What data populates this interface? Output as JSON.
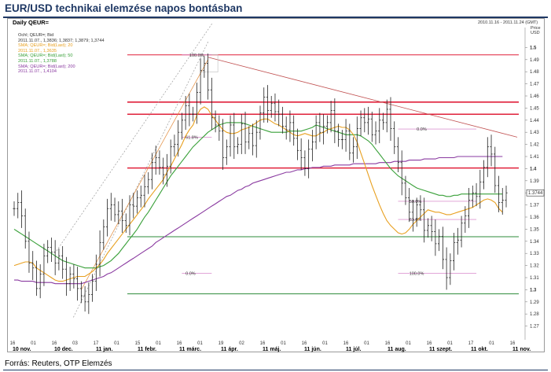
{
  "header": {
    "title": "EUR/USD technikai elemzése napos bontásban",
    "source": "Forrás: Reuters, OTP Elemzés"
  },
  "chart_header": {
    "period": "Daily QEUR=",
    "date_range": "2010.11.16 - 2011.11.24 (GMT)",
    "price_label": "Price",
    "currency_label": "USD"
  },
  "legend": [
    {
      "line1": "Ochl; QEUR=; Bid",
      "line2": "2011.11.07., 1,3836; 1,3837; 1,3879; 1,3744",
      "color": "#333333"
    },
    {
      "line1": "SMA; QEUR=; Bid(Last); 20",
      "line2": "2011.11.07., 1,3635",
      "color": "#e8a020"
    },
    {
      "line1": "SMA; QEUR=; Bid(Last); 50",
      "line2": "2011.11.07., 1,3788",
      "color": "#39a039"
    },
    {
      "line1": "SMA; QEUR=; Bid(Last); 200",
      "line2": "2011.11.07., 1,4104",
      "color": "#8a3aa0"
    }
  ],
  "chart_data": {
    "type": "candlestick",
    "title": "EUR/USD technikai elemzése napos bontásban",
    "instrument": "Daily QEUR=",
    "ylim": [
      1.26,
      1.51
    ],
    "y_ticks": [
      1.27,
      1.28,
      1.29,
      1.3,
      1.31,
      1.32,
      1.33,
      1.34,
      1.35,
      1.36,
      1.37,
      1.38,
      1.39,
      1.4,
      1.41,
      1.42,
      1.43,
      1.44,
      1.45,
      1.46,
      1.47,
      1.48,
      1.49,
      1.5
    ],
    "y_tick_labels": [
      "1.27",
      "1.28",
      "1.29",
      "1.3",
      "1.31",
      "1.32",
      "1.33",
      "1.34",
      "1.35",
      "1.36",
      "1.37",
      "1.38",
      "1.39",
      "1.4",
      "1.41",
      "1.42",
      "1.43",
      "1.44",
      "1.45",
      "1.46",
      "1.47",
      "1.48",
      "1.49",
      "1.5"
    ],
    "y_bold_ticks": [
      1.3,
      1.4,
      1.5
    ],
    "current_price_label": "1.3744",
    "x_day_labels": [
      "16",
      "01",
      "16",
      "03",
      "17",
      "01",
      "15",
      "01",
      "16",
      "01",
      "19",
      "02",
      "16",
      "01",
      "16",
      "01",
      "16",
      "01",
      "16",
      "01",
      "16",
      "01",
      "17",
      "01",
      "16"
    ],
    "x_month_labels": [
      "10 nov.",
      "10 dec.",
      "11 jan.",
      "11 febr.",
      "11 márc.",
      "11 ápr.",
      "11 máj.",
      "11 jún.",
      "11 júl.",
      "11 aug.",
      "11 szept.",
      "11 okt.",
      "11 nov."
    ],
    "closes": [
      1.367,
      1.372,
      1.361,
      1.34,
      1.322,
      1.318,
      1.301,
      1.313,
      1.328,
      1.335,
      1.331,
      1.322,
      1.328,
      1.317,
      1.305,
      1.313,
      1.309,
      1.301,
      1.295,
      1.29,
      1.296,
      1.307,
      1.321,
      1.339,
      1.352,
      1.367,
      1.37,
      1.362,
      1.365,
      1.357,
      1.353,
      1.37,
      1.369,
      1.376,
      1.378,
      1.385,
      1.391,
      1.405,
      1.409,
      1.401,
      1.395,
      1.402,
      1.418,
      1.42,
      1.43,
      1.44,
      1.452,
      1.445,
      1.445,
      1.463,
      1.481,
      1.487,
      1.465,
      1.442,
      1.436,
      1.431,
      1.409,
      1.418,
      1.436,
      1.418,
      1.42,
      1.437,
      1.422,
      1.429,
      1.419,
      1.43,
      1.446,
      1.459,
      1.448,
      1.454,
      1.447,
      1.445,
      1.435,
      1.432,
      1.438,
      1.425,
      1.415,
      1.409,
      1.4,
      1.416,
      1.422,
      1.438,
      1.43,
      1.435,
      1.438,
      1.448,
      1.431,
      1.424,
      1.424,
      1.431,
      1.413,
      1.418,
      1.433,
      1.442,
      1.438,
      1.441,
      1.428,
      1.431,
      1.44,
      1.438,
      1.449,
      1.433,
      1.418,
      1.405,
      1.388,
      1.376,
      1.364,
      1.358,
      1.37,
      1.366,
      1.349,
      1.353,
      1.348,
      1.338,
      1.344,
      1.325,
      1.31,
      1.324,
      1.339,
      1.341,
      1.355,
      1.361,
      1.374,
      1.38,
      1.377,
      1.389,
      1.401,
      1.418,
      1.412,
      1.386,
      1.372,
      1.374,
      1.38
    ],
    "sma20": [
      1.32,
      1.321,
      1.322,
      1.323,
      1.323,
      1.322,
      1.318,
      1.316,
      1.314,
      1.312,
      1.31,
      1.308,
      1.307,
      1.307,
      1.308,
      1.309,
      1.31,
      1.311,
      1.311,
      1.311,
      1.313,
      1.315,
      1.318,
      1.321,
      1.325,
      1.33,
      1.334,
      1.338,
      1.342,
      1.346,
      1.35,
      1.354,
      1.358,
      1.362,
      1.366,
      1.37,
      1.375,
      1.379,
      1.383,
      1.387,
      1.391,
      1.397,
      1.402,
      1.408,
      1.414,
      1.42,
      1.427,
      1.432,
      1.436,
      1.444,
      1.449,
      1.451,
      1.449,
      1.444,
      1.44,
      1.436,
      1.432,
      1.43,
      1.429,
      1.429,
      1.43,
      1.432,
      1.433,
      1.434,
      1.436,
      1.438,
      1.44,
      1.441,
      1.441,
      1.439,
      1.437,
      1.436,
      1.434,
      1.432,
      1.43,
      1.428,
      1.427,
      1.428,
      1.429,
      1.428,
      1.427,
      1.427,
      1.429,
      1.43,
      1.432,
      1.433,
      1.434,
      1.435,
      1.434,
      1.434,
      1.432,
      1.428,
      1.422,
      1.413,
      1.404,
      1.395,
      1.386,
      1.378,
      1.37,
      1.363,
      1.357,
      1.353,
      1.35,
      1.347,
      1.346,
      1.347,
      1.35,
      1.354,
      1.357,
      1.36,
      1.363,
      1.366,
      1.365,
      1.364,
      1.364,
      1.363,
      1.362,
      1.362,
      1.363,
      1.364,
      1.365,
      1.366,
      1.367,
      1.368,
      1.37,
      1.372,
      1.374,
      1.375,
      1.374,
      1.372,
      1.367,
      1.364
    ],
    "sma50": [
      1.35,
      1.348,
      1.346,
      1.344,
      1.342,
      1.34,
      1.338,
      1.336,
      1.334,
      1.332,
      1.33,
      1.328,
      1.326,
      1.324,
      1.323,
      1.322,
      1.321,
      1.32,
      1.319,
      1.318,
      1.318,
      1.318,
      1.318,
      1.319,
      1.32,
      1.322,
      1.324,
      1.327,
      1.33,
      1.334,
      1.338,
      1.342,
      1.346,
      1.35,
      1.355,
      1.36,
      1.364,
      1.369,
      1.374,
      1.379,
      1.384,
      1.389,
      1.394,
      1.398,
      1.402,
      1.406,
      1.41,
      1.414,
      1.418,
      1.421,
      1.424,
      1.427,
      1.43,
      1.432,
      1.434,
      1.436,
      1.437,
      1.438,
      1.438,
      1.438,
      1.438,
      1.438,
      1.437,
      1.436,
      1.435,
      1.434,
      1.433,
      1.432,
      1.431,
      1.43,
      1.43,
      1.43,
      1.43,
      1.43,
      1.431,
      1.431,
      1.431,
      1.431,
      1.432,
      1.433,
      1.434,
      1.436,
      1.435,
      1.434,
      1.433,
      1.432,
      1.431,
      1.43,
      1.429,
      1.428,
      1.428,
      1.428,
      1.428,
      1.427,
      1.425,
      1.423,
      1.42,
      1.416,
      1.412,
      1.408,
      1.404,
      1.4,
      1.397,
      1.394,
      1.392,
      1.39,
      1.388,
      1.386,
      1.384,
      1.383,
      1.382,
      1.381,
      1.38,
      1.379,
      1.378,
      1.378,
      1.377,
      1.377,
      1.378,
      1.378,
      1.379,
      1.379,
      1.379,
      1.379,
      1.379,
      1.379,
      1.379,
      1.379,
      1.379,
      1.379,
      1.379,
      1.379
    ],
    "sma200": [
      1.308,
      1.308,
      1.307,
      1.307,
      1.307,
      1.307,
      1.306,
      1.306,
      1.306,
      1.306,
      1.306,
      1.305,
      1.305,
      1.305,
      1.305,
      1.305,
      1.305,
      1.305,
      1.305,
      1.306,
      1.307,
      1.308,
      1.309,
      1.31,
      1.311,
      1.313,
      1.314,
      1.316,
      1.318,
      1.32,
      1.322,
      1.324,
      1.326,
      1.328,
      1.33,
      1.332,
      1.334,
      1.336,
      1.339,
      1.341,
      1.343,
      1.345,
      1.347,
      1.349,
      1.351,
      1.353,
      1.355,
      1.357,
      1.359,
      1.361,
      1.363,
      1.365,
      1.367,
      1.369,
      1.371,
      1.373,
      1.375,
      1.377,
      1.378,
      1.38,
      1.382,
      1.383,
      1.385,
      1.386,
      1.388,
      1.389,
      1.39,
      1.391,
      1.392,
      1.393,
      1.394,
      1.395,
      1.396,
      1.397,
      1.397,
      1.398,
      1.399,
      1.399,
      1.4,
      1.4,
      1.401,
      1.401,
      1.401,
      1.402,
      1.402,
      1.402,
      1.403,
      1.403,
      1.403,
      1.403,
      1.403,
      1.404,
      1.404,
      1.404,
      1.404,
      1.404,
      1.404,
      1.404,
      1.405,
      1.405,
      1.405,
      1.405,
      1.406,
      1.406,
      1.406,
      1.406,
      1.407,
      1.407,
      1.407,
      1.407,
      1.408,
      1.408,
      1.408,
      1.408,
      1.409,
      1.409,
      1.409,
      1.409,
      1.409,
      1.41,
      1.41,
      1.41,
      1.41,
      1.41,
      1.41,
      1.41,
      1.41,
      1.41,
      1.41,
      1.41,
      1.41,
      1.41
    ],
    "horizontal_levels": [
      {
        "price": 1.4939,
        "color": "#e0203a",
        "weight": "thin"
      },
      {
        "price": 1.4549,
        "color": "#e0203a",
        "weight": "thick"
      },
      {
        "price": 1.4449,
        "color": "#e0203a",
        "weight": "thick"
      },
      {
        "price": 1.4005,
        "color": "#e0203a",
        "weight": "thick"
      },
      {
        "price": 1.3438,
        "color": "#2e8b3a",
        "weight": "thin"
      },
      {
        "price": 1.2966,
        "color": "#2e8b3a",
        "weight": "thin"
      }
    ],
    "fib_labels": [
      "100.0%",
      "61.8%",
      "0.0%",
      "0.0%",
      "50.0%",
      "61.8%",
      "100.0%"
    ]
  }
}
